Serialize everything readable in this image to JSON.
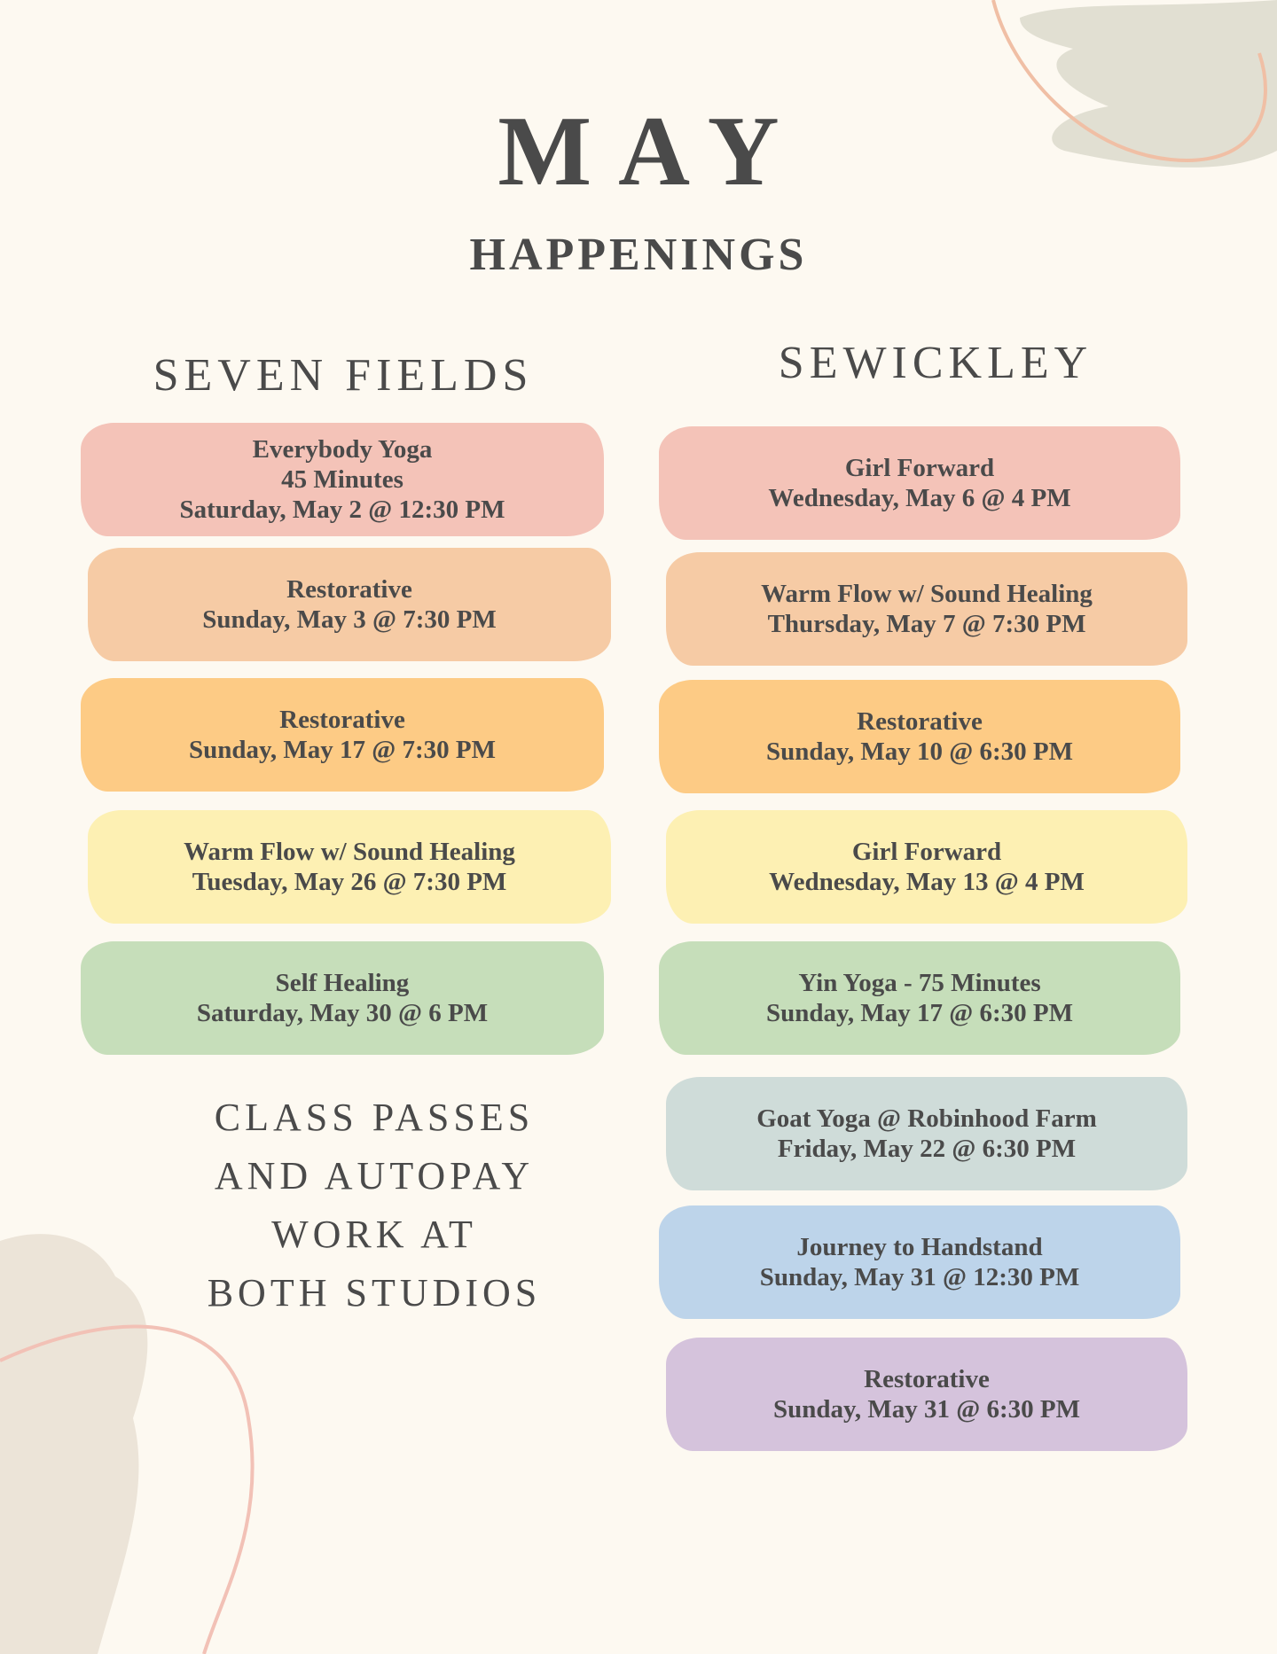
{
  "header": {
    "title": "MAY",
    "subtitle": "HAPPENINGS"
  },
  "columns": [
    {
      "title": "SEVEN FIELDS",
      "events": [
        {
          "lines": [
            "Everybody Yoga",
            "45 Minutes",
            "Saturday, May 2 @ 12:30 PM"
          ]
        },
        {
          "lines": [
            "Restorative",
            "Sunday, May 3 @ 7:30 PM"
          ]
        },
        {
          "lines": [
            "Restorative",
            "Sunday, May 17 @ 7:30 PM"
          ]
        },
        {
          "lines": [
            "Warm Flow w/ Sound Healing",
            "Tuesday, May 26 @ 7:30 PM"
          ]
        },
        {
          "lines": [
            "Self Healing",
            "Saturday, May 30 @ 6 PM"
          ]
        }
      ]
    },
    {
      "title": "SEWICKLEY",
      "events": [
        {
          "lines": [
            "Girl Forward",
            "Wednesday, May 6 @ 4 PM"
          ]
        },
        {
          "lines": [
            "Warm Flow w/ Sound Healing",
            "Thursday, May 7 @ 7:30 PM"
          ]
        },
        {
          "lines": [
            "Restorative",
            "Sunday, May 10 @ 6:30 PM"
          ]
        },
        {
          "lines": [
            "Girl Forward",
            "Wednesday, May 13 @ 4 PM"
          ]
        },
        {
          "lines": [
            "Yin Yoga - 75 Minutes",
            "Sunday, May 17 @ 6:30 PM"
          ]
        },
        {
          "lines": [
            "Goat Yoga @ Robinhood Farm",
            "Friday, May 22 @ 6:30 PM"
          ]
        },
        {
          "lines": [
            "Journey to Handstand",
            "Sunday, May 31 @ 12:30 PM"
          ]
        },
        {
          "lines": [
            "Restorative",
            "Sunday, May 31 @ 6:30 PM"
          ]
        }
      ]
    }
  ],
  "note": {
    "lines": [
      "CLASS PASSES",
      "AND AUTOPAY",
      "WORK AT",
      "BOTH STUDIOS"
    ]
  }
}
